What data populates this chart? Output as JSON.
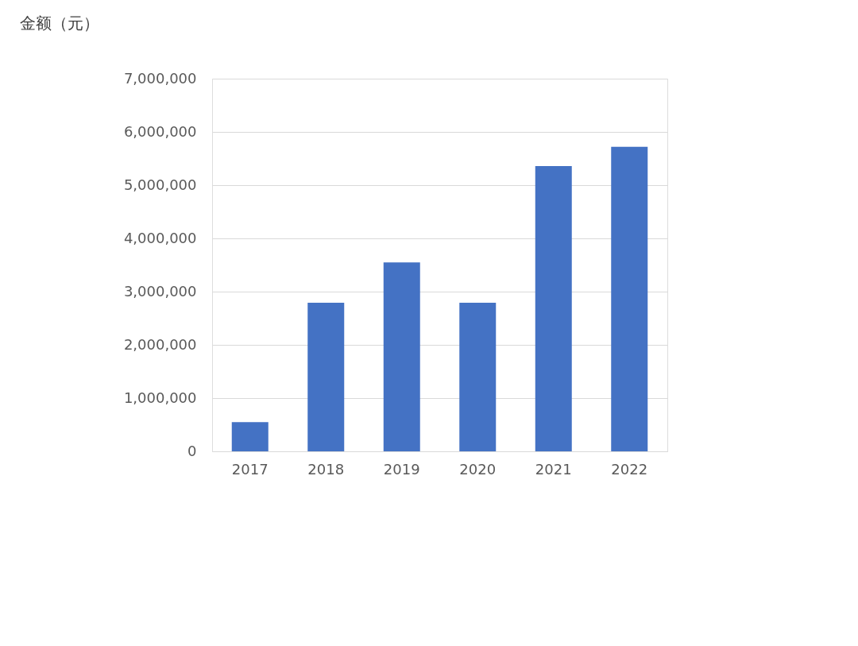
{
  "chart_data": {
    "type": "bar",
    "ylabel": "金额（元）",
    "categories": [
      "2017",
      "2018",
      "2019",
      "2020",
      "2021",
      "2022"
    ],
    "values": [
      550000,
      2790000,
      3550000,
      2790000,
      5360000,
      5720000
    ],
    "color": "#4472c4",
    "ylim": [
      0,
      7000000
    ],
    "yticks": [
      0,
      {
        "value": 1000000,
        "label": "1,000,000"
      },
      {
        "value": 2000000,
        "label": "2,000,000"
      },
      {
        "value": 3000000,
        "label": "3,000,000"
      },
      {
        "value": 4000000,
        "label": "4,000,000"
      },
      {
        "value": 5000000,
        "label": "5,000,000"
      },
      {
        "value": 6000000,
        "label": "6,000,000"
      },
      {
        "value": 7000000,
        "label": "7,000,000"
      }
    ],
    "grid": "y"
  }
}
